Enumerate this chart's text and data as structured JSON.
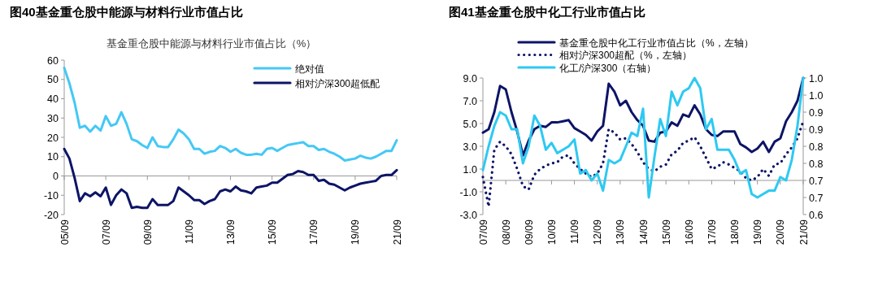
{
  "chart_data": [
    {
      "type": "line",
      "title": "图40基金重仓股中能源与材料行业市值占比",
      "subtitle": "基金重仓股中能源与材料行业市值占比（%）",
      "categories": [
        "05/09",
        null,
        null,
        null,
        null,
        null,
        null,
        null,
        "07/09",
        null,
        null,
        null,
        null,
        null,
        null,
        null,
        "09/09",
        null,
        null,
        null,
        null,
        null,
        null,
        null,
        "11/09",
        null,
        null,
        null,
        null,
        null,
        null,
        null,
        "13/09",
        null,
        null,
        null,
        null,
        null,
        null,
        null,
        "15/09",
        null,
        null,
        null,
        null,
        null,
        null,
        null,
        "17/09",
        null,
        null,
        null,
        null,
        null,
        null,
        null,
        "19/09",
        null,
        null,
        null,
        null,
        null,
        null,
        null,
        "21/09"
      ],
      "ylim": [
        -20,
        60
      ],
      "yticks": [
        -20,
        -10,
        0,
        10,
        20,
        30,
        40,
        50,
        60
      ],
      "legend": "top right",
      "series": [
        {
          "name": "绝对值",
          "color": "#45c8f5",
          "values": [
            56,
            48,
            38,
            25,
            26,
            23,
            26,
            23.5,
            31,
            26,
            27,
            33,
            27,
            19,
            18,
            16,
            14.5,
            20,
            15.5,
            15,
            15,
            19,
            24,
            22,
            19,
            14,
            14,
            11.5,
            12.5,
            13,
            15.5,
            14.5,
            12.5,
            14,
            12,
            11,
            11,
            11.5,
            11,
            14,
            14.5,
            13,
            14.5,
            16,
            16.5,
            17,
            17.5,
            15.5,
            15.5,
            13.5,
            14,
            12.5,
            11.5,
            10,
            8,
            8.5,
            9,
            10.5,
            9.5,
            9,
            10,
            11.5,
            13,
            13,
            18.5
          ]
        },
        {
          "name": "相对沪深300超低配",
          "color": "#0d1466",
          "values": [
            14,
            9,
            -1,
            -13,
            -9,
            -10.5,
            -8.5,
            -10.5,
            -6,
            -15,
            -10,
            -7,
            -9,
            -16.5,
            -16,
            -16.5,
            -16.5,
            -12,
            -15,
            -15,
            -15,
            -13,
            -6,
            -8,
            -10,
            -12.5,
            -12.5,
            -14.5,
            -13,
            -12,
            -8,
            -7,
            -8,
            -5.5,
            -7.5,
            -8,
            -9,
            -6,
            -5.5,
            -5,
            -3.5,
            -3.5,
            -1.5,
            0.5,
            1,
            2.5,
            2,
            0.5,
            0.5,
            -2.5,
            -2,
            -4,
            -4.5,
            -6,
            -7.5,
            -6,
            -5,
            -4,
            -3.5,
            -3,
            -2.5,
            0,
            0.5,
            0.5,
            3
          ]
        }
      ]
    },
    {
      "type": "line",
      "title": "图41基金重仓股中化工行业市值占比",
      "categories": [
        "07/09",
        null,
        null,
        null,
        "08/09",
        null,
        null,
        null,
        "09/09",
        null,
        null,
        null,
        "10/09",
        null,
        null,
        null,
        "11/09",
        null,
        null,
        null,
        "12/09",
        null,
        null,
        null,
        "13/09",
        null,
        null,
        null,
        "14/09",
        null,
        null,
        null,
        "15/09",
        null,
        null,
        null,
        "16/09",
        null,
        null,
        null,
        "17/09",
        null,
        null,
        null,
        "18/09",
        null,
        null,
        null,
        "19/09",
        null,
        null,
        null,
        "20/09",
        null,
        null,
        null,
        "21/09"
      ],
      "ylim": [
        -3,
        9
      ],
      "yticks": [
        {
          "value": -3,
          "label": "-3.0"
        },
        {
          "value": -1,
          "label": "-1.0"
        },
        {
          "value": 1,
          "label": "1.0"
        },
        {
          "value": 3,
          "label": "3.0"
        },
        {
          "value": 5,
          "label": "5.0"
        },
        {
          "value": 7,
          "label": "7.0"
        },
        {
          "value": 9,
          "label": "9.0"
        }
      ],
      "y2lim": [
        0.6,
        1.0
      ],
      "y2ticks": [
        {
          "value": 0.6,
          "label": "0.6"
        },
        {
          "value": 0.65,
          "label": "0.7"
        },
        {
          "value": 0.7,
          "label": "0.7"
        },
        {
          "value": 0.75,
          "label": "0.8"
        },
        {
          "value": 0.8,
          "label": "0.8"
        },
        {
          "value": 0.85,
          "label": "0.9"
        },
        {
          "value": 0.9,
          "label": "0.9"
        },
        {
          "value": 0.95,
          "label": "1.0"
        },
        {
          "value": 1.0,
          "label": "1.0"
        }
      ],
      "legend": "top",
      "series": [
        {
          "name": "基金重仓股中化工行业市值占比（%，左轴）",
          "color": "#0d1466",
          "line_style": "solid",
          "values": [
            4.2,
            4.5,
            6,
            8.3,
            8,
            6,
            4.3,
            2.2,
            3.5,
            4.5,
            4.8,
            4.7,
            5.1,
            5.1,
            5.2,
            5.3,
            4.6,
            4.3,
            4,
            3.5,
            4.3,
            4.8,
            8.5,
            7.8,
            6.6,
            7,
            6,
            5.3,
            4.8,
            3.5,
            3.4,
            4.2,
            4.3,
            5.1,
            4.8,
            5.8,
            5.6,
            6.6,
            5.8,
            4.5,
            4,
            3.9,
            4.3,
            4.3,
            4.3,
            3.2,
            2.9,
            2.5,
            2.8,
            3.4,
            2.5,
            3.4,
            3.7,
            5.2,
            6,
            7,
            9
          ]
        },
        {
          "name": "相对沪深300超配（%，左轴）",
          "color": "#0d1466",
          "line_style": "dotted",
          "values": [
            0.3,
            -2.3,
            2.7,
            3.4,
            3,
            2.3,
            1,
            -0.5,
            -0.8,
            0.5,
            1,
            1.3,
            1.5,
            1.6,
            2.1,
            2.2,
            1.5,
            1,
            0.6,
            0.3,
            0.6,
            1.5,
            4.5,
            4.2,
            3.6,
            3.7,
            3.2,
            2.5,
            1.6,
            1,
            0.8,
            1.2,
            1.4,
            2.3,
            2.6,
            3.3,
            3.5,
            3.8,
            3,
            2,
            1,
            1.2,
            1.6,
            1.4,
            1.1,
            0.8,
            0.2,
            0,
            0.3,
            1,
            0.4,
            1.4,
            1.5,
            2.3,
            2.9,
            3.7,
            5.2
          ]
        },
        {
          "name": "化工/沪深300（右轴）",
          "color": "#2ec9f2",
          "line_style": "solid",
          "axis": "y2",
          "values": [
            0.73,
            0.8,
            0.86,
            0.9,
            0.89,
            0.85,
            0.85,
            0.75,
            0.8,
            0.89,
            0.86,
            0.79,
            0.81,
            0.78,
            0.79,
            0.8,
            0.82,
            0.72,
            0.73,
            0.7,
            0.72,
            0.67,
            0.76,
            0.75,
            0.76,
            0.8,
            0.84,
            0.83,
            0.91,
            0.65,
            0.77,
            0.88,
            0.83,
            0.96,
            0.92,
            0.96,
            0.97,
            1.0,
            0.97,
            0.85,
            0.88,
            0.79,
            0.79,
            0.79,
            0.76,
            0.72,
            0.73,
            0.66,
            0.65,
            0.66,
            0.67,
            0.67,
            0.71,
            0.7,
            0.76,
            0.86,
            1.0
          ]
        }
      ]
    }
  ]
}
